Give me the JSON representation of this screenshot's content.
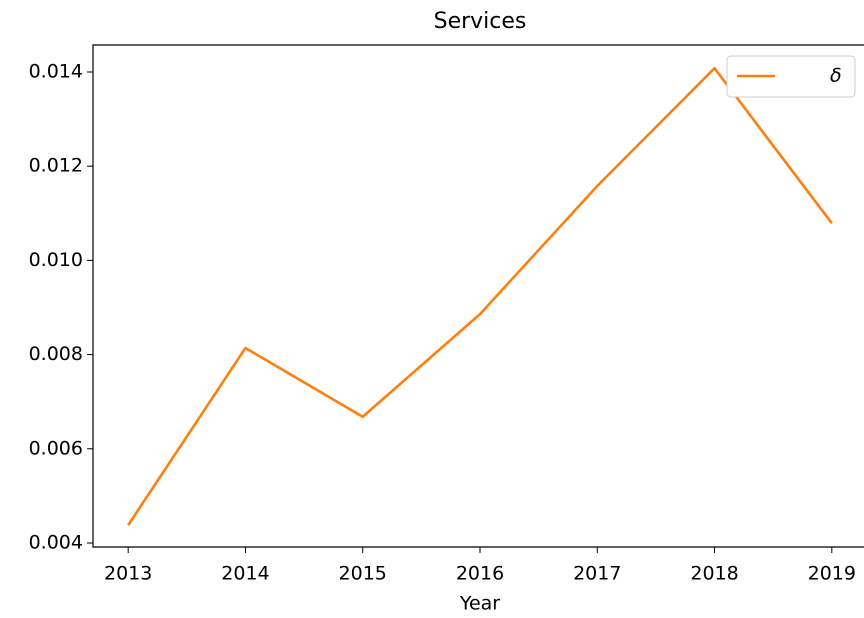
{
  "chart_data": {
    "type": "line",
    "title": "Services",
    "x_label": "Year",
    "x": [
      2013,
      2014,
      2015,
      2016,
      2017,
      2018,
      2019
    ],
    "series": [
      {
        "name": "δ",
        "color": "#ff7f0e",
        "values": [
          0.00438,
          0.00814,
          0.00668,
          0.00886,
          0.01158,
          0.01408,
          0.01079
        ]
      }
    ],
    "xlim": [
      2012.7,
      2019.3
    ],
    "xticks": [
      2013,
      2014,
      2015,
      2016,
      2017,
      2018,
      2019
    ],
    "ylim": [
      0.003915,
      0.014573
    ],
    "yticks": [
      0.004,
      0.006,
      0.008,
      {
        "value": 0.01,
        "label": "0.010"
      },
      0.012,
      0.014
    ],
    "grid": false,
    "legend": "upper right"
  }
}
